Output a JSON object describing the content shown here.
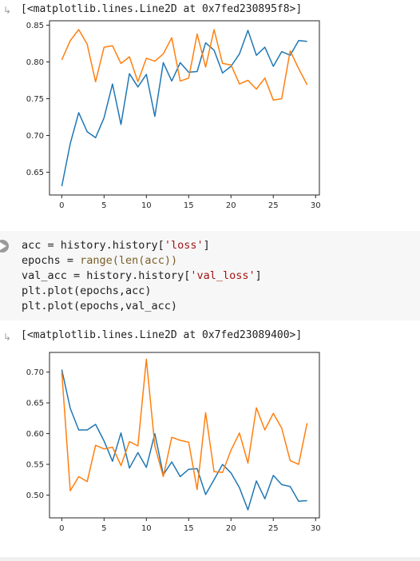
{
  "outputs": [
    {
      "repr": "[<matplotlib.lines.Line2D at 0x7fed230895f8>]"
    },
    {
      "repr": "[<matplotlib.lines.Line2D at 0x7fed23089400>]"
    }
  ],
  "code_cell": {
    "lines": [
      {
        "pre": "acc = history.history[",
        "str": "'loss'",
        "post": "]",
        "fn": ""
      },
      {
        "pre": "epochs = ",
        "fn": "range(len(acc))",
        "str": "",
        "post": ""
      },
      {
        "pre": "val_acc = history.history[",
        "str": "'val_loss'",
        "post": "]",
        "fn": ""
      },
      {
        "pre": "plt.plot(epochs,acc)",
        "str": "",
        "post": "",
        "fn": ""
      },
      {
        "pre": "plt.plot(epochs,val_acc)",
        "str": "",
        "post": "",
        "fn": ""
      }
    ]
  },
  "colors": {
    "series1": "#1f77b4",
    "series2": "#ff7f0e"
  },
  "chart_data": [
    {
      "type": "line",
      "xlim": [
        -1.45,
        30.45
      ],
      "ylim": [
        0.619,
        0.856
      ],
      "xticks": [
        0,
        5,
        10,
        15,
        20,
        25,
        30
      ],
      "yticks": [
        0.65,
        0.7,
        0.75,
        0.8,
        0.85
      ],
      "ytick_labels": [
        "0.65",
        "0.70",
        "0.75",
        "0.80",
        "0.85"
      ],
      "x": [
        0,
        1,
        2,
        3,
        4,
        5,
        6,
        7,
        8,
        9,
        10,
        11,
        12,
        13,
        14,
        15,
        16,
        17,
        18,
        19,
        20,
        21,
        22,
        23,
        24,
        25,
        26,
        27,
        28,
        29
      ],
      "series": [
        {
          "values": [
            0.631,
            0.689,
            0.731,
            0.705,
            0.697,
            0.724,
            0.77,
            0.715,
            0.784,
            0.766,
            0.783,
            0.726,
            0.799,
            0.774,
            0.799,
            0.786,
            0.787,
            0.826,
            0.816,
            0.785,
            0.794,
            0.811,
            0.843,
            0.809,
            0.82,
            0.794,
            0.814,
            0.809,
            0.829,
            0.828
          ]
        },
        {
          "values": [
            0.803,
            0.829,
            0.844,
            0.824,
            0.773,
            0.82,
            0.822,
            0.798,
            0.807,
            0.773,
            0.805,
            0.801,
            0.811,
            0.833,
            0.774,
            0.778,
            0.838,
            0.793,
            0.844,
            0.798,
            0.796,
            0.77,
            0.775,
            0.763,
            0.778,
            0.748,
            0.75,
            0.815,
            0.791,
            0.769
          ]
        }
      ]
    },
    {
      "type": "line",
      "xlim": [
        -1.45,
        30.45
      ],
      "ylim": [
        0.463,
        0.732
      ],
      "xticks": [
        0,
        5,
        10,
        15,
        20,
        25,
        30
      ],
      "yticks": [
        0.5,
        0.55,
        0.6,
        0.65,
        0.7
      ],
      "ytick_labels": [
        "0.50",
        "0.55",
        "0.60",
        "0.65",
        "0.70"
      ],
      "x": [
        0,
        1,
        2,
        3,
        4,
        5,
        6,
        7,
        8,
        9,
        10,
        11,
        12,
        13,
        14,
        15,
        16,
        17,
        18,
        19,
        20,
        21,
        22,
        23,
        24,
        25,
        26,
        27,
        28,
        29
      ],
      "series": [
        {
          "values": [
            0.704,
            0.641,
            0.606,
            0.606,
            0.615,
            0.588,
            0.555,
            0.601,
            0.544,
            0.569,
            0.545,
            0.6,
            0.533,
            0.554,
            0.53,
            0.542,
            0.543,
            0.501,
            0.525,
            0.55,
            0.536,
            0.512,
            0.476,
            0.523,
            0.494,
            0.532,
            0.517,
            0.514,
            0.49,
            0.491
          ]
        },
        {
          "values": [
            0.7,
            0.507,
            0.53,
            0.522,
            0.581,
            0.575,
            0.578,
            0.548,
            0.587,
            0.58,
            0.721,
            0.58,
            0.53,
            0.594,
            0.589,
            0.586,
            0.509,
            0.634,
            0.538,
            0.537,
            0.573,
            0.601,
            0.552,
            0.642,
            0.606,
            0.633,
            0.609,
            0.556,
            0.55,
            0.617
          ]
        }
      ]
    }
  ]
}
